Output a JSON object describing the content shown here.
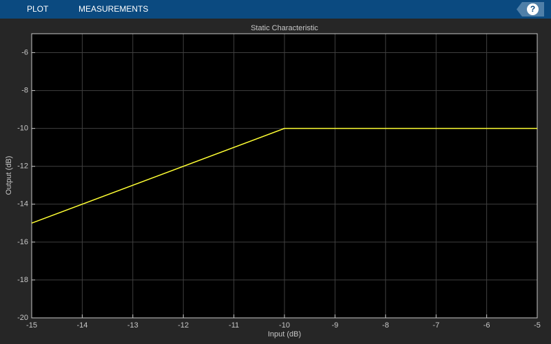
{
  "toolbar": {
    "tabs": [
      "PLOT",
      "MEASUREMENTS"
    ],
    "help": "?"
  },
  "chart_data": {
    "type": "line",
    "title": "Static Characteristic",
    "x_label": "Input (dB)",
    "y_label": "Output (dB)",
    "x": [
      -15,
      -10,
      -5
    ],
    "values": [
      -15,
      -10,
      -10
    ],
    "color": "#ffff33",
    "xlim": [
      -15,
      -5
    ],
    "ylim": [
      -20,
      -5
    ],
    "xticks": [
      -15,
      -14,
      -13,
      -12,
      -11,
      -10,
      -9,
      -8,
      -7,
      -6,
      -5
    ],
    "yticks": [
      -20,
      -18,
      -16,
      -14,
      -12,
      -10,
      -8,
      -6
    ],
    "grid": true
  }
}
